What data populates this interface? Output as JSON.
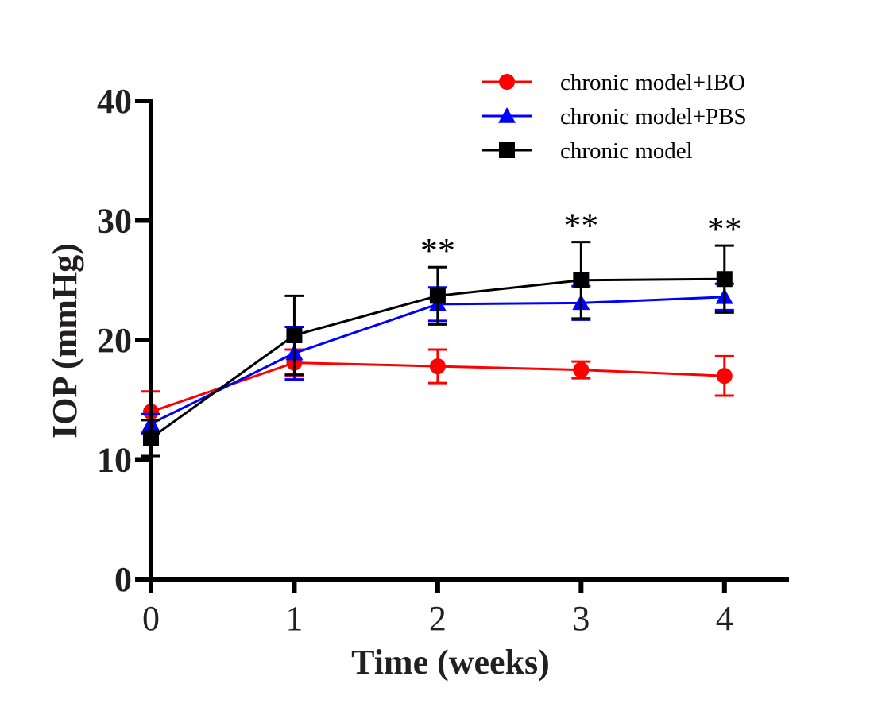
{
  "chart_data": {
    "type": "line",
    "title": "",
    "xlabel": "Time (weeks)",
    "ylabel": "IOP (mmHg)",
    "x": [
      0,
      1,
      2,
      3,
      4
    ],
    "xticks": [
      "0",
      "1",
      "2",
      "3",
      "4"
    ],
    "yticks": [
      "0",
      "10",
      "20",
      "30",
      "40"
    ],
    "xlim": [
      0,
      4.45
    ],
    "ylim": [
      0,
      40
    ],
    "grid": false,
    "legend_position": "top-right",
    "series": [
      {
        "name": "chronic model+IBO",
        "color": "#ff0000",
        "marker": "circle",
        "values": [
          14.0,
          18.1,
          17.8,
          17.5,
          17.0
        ],
        "error": [
          1.7,
          1.1,
          1.4,
          0.7,
          1.65
        ]
      },
      {
        "name": "chronic model+PBS",
        "color": "#0000ff",
        "marker": "triangle",
        "values": [
          13.0,
          18.9,
          23.0,
          23.1,
          23.6
        ],
        "error": [
          0.8,
          2.2,
          1.4,
          1.4,
          1.1
        ]
      },
      {
        "name": "chronic model",
        "color": "#000000",
        "marker": "square",
        "values": [
          11.8,
          20.4,
          23.7,
          25.0,
          25.1
        ],
        "error": [
          1.5,
          3.3,
          2.4,
          3.2,
          2.8
        ]
      }
    ],
    "annotations": [
      {
        "x": 2,
        "text": "**"
      },
      {
        "x": 3,
        "text": "**"
      },
      {
        "x": 4,
        "text": "**"
      }
    ]
  }
}
